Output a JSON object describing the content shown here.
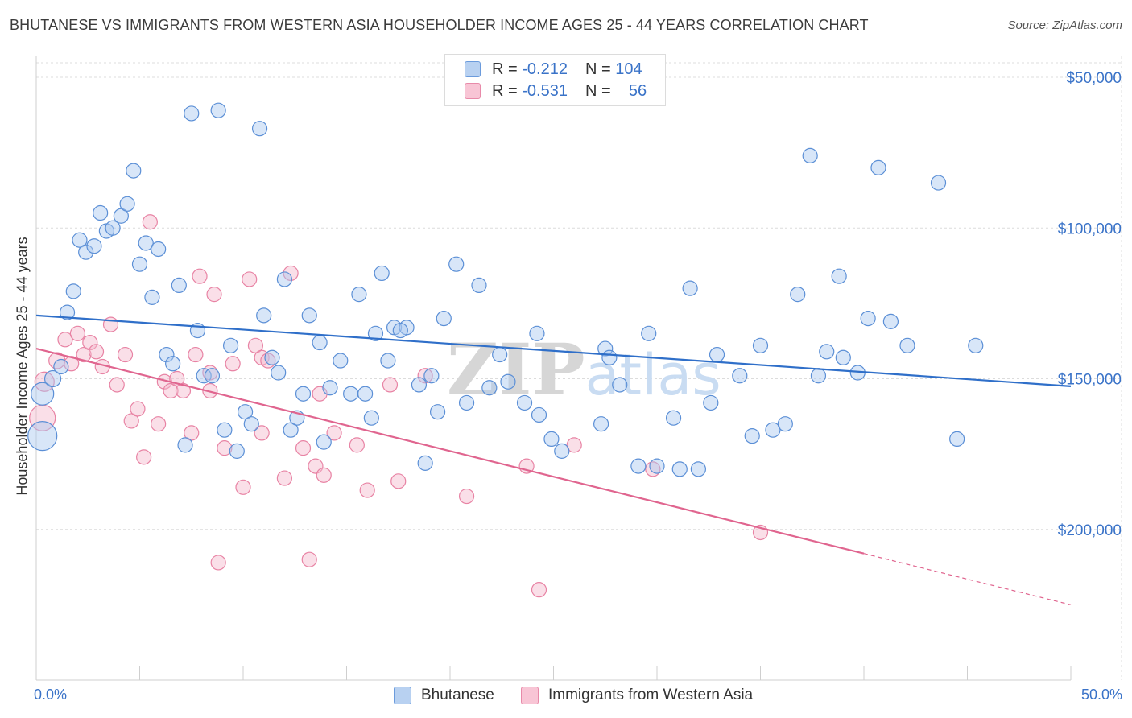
{
  "title": "BHUTANESE VS IMMIGRANTS FROM WESTERN ASIA HOUSEHOLDER INCOME AGES 25 - 44 YEARS CORRELATION CHART",
  "source": "Source: ZipAtlas.com",
  "watermark": "ZIPatlas",
  "legend": {
    "rows": [
      {
        "r_label": "R =",
        "r_value": "-0.212",
        "n_label": "N =",
        "n_value": "104"
      },
      {
        "r_label": "R =",
        "r_value": "-0.531",
        "n_label": "N =",
        "n_value": "56"
      }
    ]
  },
  "bottom_legend": [
    "Bhutanese",
    "Immigrants from Western Asia"
  ],
  "axis": {
    "ylabel": "Householder Income Ages 25 - 44 years",
    "x_min_label": "0.0%",
    "x_max_label": "50.0%",
    "y_ticks": [
      "$200,000",
      "$150,000",
      "$100,000",
      "$50,000"
    ]
  },
  "colors": {
    "blue_fill": "#a9c8ef",
    "blue_stroke": "#5b8fd6",
    "blue_line": "#2f6fc9",
    "pink_fill": "#f5b8cb",
    "pink_stroke": "#e883a4",
    "pink_line": "#e0658f",
    "tick_text": "#3a73c8"
  },
  "chart_data": {
    "type": "scatter",
    "xlim": [
      0,
      50
    ],
    "ylim": [
      0,
      210000
    ],
    "y_ticks": [
      50000,
      100000,
      150000,
      200000
    ],
    "grid": true,
    "series": [
      {
        "name": "Bhutanese",
        "trend": {
          "x0": 0,
          "y0": 121000,
          "x1": 50,
          "y1": 97500
        },
        "points": [
          [
            0.3,
            95000,
            14
          ],
          [
            0.3,
            81000,
            18
          ],
          [
            0.8,
            100000,
            10
          ],
          [
            1.2,
            104000,
            9
          ],
          [
            1.5,
            122000,
            9
          ],
          [
            1.8,
            129000,
            9
          ],
          [
            2.1,
            146000,
            9
          ],
          [
            2.4,
            142000,
            9
          ],
          [
            2.8,
            144000,
            9
          ],
          [
            3.1,
            155000,
            9
          ],
          [
            3.4,
            149000,
            9
          ],
          [
            3.7,
            150000,
            9
          ],
          [
            4.1,
            154000,
            9
          ],
          [
            4.4,
            158000,
            9
          ],
          [
            4.7,
            169000,
            9
          ],
          [
            5.0,
            138000,
            9
          ],
          [
            5.3,
            145000,
            9
          ],
          [
            5.6,
            127000,
            9
          ],
          [
            5.9,
            143000,
            9
          ],
          [
            6.3,
            108000,
            9
          ],
          [
            6.6,
            105000,
            9
          ],
          [
            6.9,
            131000,
            9
          ],
          [
            7.2,
            78000,
            9
          ],
          [
            7.5,
            188000,
            9
          ],
          [
            7.8,
            116000,
            9
          ],
          [
            8.1,
            101000,
            9
          ],
          [
            8.5,
            101000,
            9
          ],
          [
            8.8,
            189000,
            9
          ],
          [
            9.1,
            83000,
            9
          ],
          [
            9.4,
            111000,
            9
          ],
          [
            9.7,
            76000,
            9
          ],
          [
            10.1,
            89000,
            9
          ],
          [
            10.4,
            85000,
            9
          ],
          [
            10.8,
            183000,
            9
          ],
          [
            11.0,
            121000,
            9
          ],
          [
            11.4,
            107000,
            9
          ],
          [
            11.7,
            102000,
            9
          ],
          [
            12.0,
            133000,
            9
          ],
          [
            12.3,
            83000,
            9
          ],
          [
            12.6,
            87000,
            9
          ],
          [
            12.9,
            95000,
            9
          ],
          [
            13.2,
            121000,
            9
          ],
          [
            13.7,
            112000,
            9
          ],
          [
            13.9,
            79000,
            9
          ],
          [
            14.2,
            97000,
            9
          ],
          [
            14.7,
            106000,
            9
          ],
          [
            15.2,
            95000,
            9
          ],
          [
            15.6,
            128000,
            9
          ],
          [
            15.9,
            95000,
            9
          ],
          [
            16.2,
            87000,
            9
          ],
          [
            16.4,
            115000,
            9
          ],
          [
            16.7,
            135000,
            9
          ],
          [
            17.0,
            106000,
            9
          ],
          [
            17.3,
            117000,
            9
          ],
          [
            17.9,
            117000,
            9
          ],
          [
            17.6,
            116000,
            9
          ],
          [
            18.5,
            98000,
            9
          ],
          [
            18.8,
            72000,
            9
          ],
          [
            19.1,
            101000,
            9
          ],
          [
            19.4,
            89000,
            9
          ],
          [
            19.7,
            120000,
            9
          ],
          [
            20.3,
            138000,
            9
          ],
          [
            20.8,
            92000,
            9
          ],
          [
            21.4,
            131000,
            9
          ],
          [
            21.9,
            97000,
            9
          ],
          [
            22.4,
            108000,
            9
          ],
          [
            22.8,
            99000,
            9
          ],
          [
            23.6,
            92000,
            9
          ],
          [
            24.2,
            115000,
            9
          ],
          [
            24.3,
            88000,
            9
          ],
          [
            24.9,
            80000,
            9
          ],
          [
            25.4,
            76000,
            9
          ],
          [
            27.3,
            85000,
            9
          ],
          [
            27.5,
            110000,
            9
          ],
          [
            27.7,
            107000,
            9
          ],
          [
            28.2,
            98000,
            9
          ],
          [
            29.1,
            71000,
            9
          ],
          [
            29.6,
            115000,
            9
          ],
          [
            30.0,
            71000,
            9
          ],
          [
            30.8,
            87000,
            9
          ],
          [
            31.1,
            70000,
            9
          ],
          [
            31.6,
            130000,
            9
          ],
          [
            32.0,
            70000,
            9
          ],
          [
            32.6,
            92000,
            9
          ],
          [
            32.9,
            108000,
            9
          ],
          [
            34.0,
            101000,
            9
          ],
          [
            34.6,
            81000,
            9
          ],
          [
            35.0,
            111000,
            9
          ],
          [
            35.6,
            83000,
            9
          ],
          [
            36.2,
            85000,
            9
          ],
          [
            36.8,
            128000,
            9
          ],
          [
            37.4,
            174000,
            9
          ],
          [
            37.8,
            101000,
            9
          ],
          [
            38.2,
            109000,
            9
          ],
          [
            38.8,
            134000,
            9
          ],
          [
            39.0,
            107000,
            9
          ],
          [
            39.7,
            102000,
            9
          ],
          [
            40.2,
            120000,
            9
          ],
          [
            40.7,
            170000,
            9
          ],
          [
            41.3,
            119000,
            9
          ],
          [
            42.1,
            111000,
            9
          ],
          [
            43.6,
            165000,
            9
          ],
          [
            44.5,
            80000,
            9
          ],
          [
            45.4,
            111000,
            9
          ]
        ]
      },
      {
        "name": "Immigrants from Western Asia",
        "trend": {
          "x0": 0,
          "y0": 110000,
          "x1": 40,
          "y1": 42000,
          "dash_to_x": 50,
          "dash_to_y": 25000
        },
        "points": [
          [
            0.3,
            87000,
            16
          ],
          [
            0.4,
            99000,
            12
          ],
          [
            1.0,
            106000,
            10
          ],
          [
            1.4,
            113000,
            9
          ],
          [
            1.7,
            105000,
            9
          ],
          [
            2.0,
            115000,
            9
          ],
          [
            2.3,
            108000,
            9
          ],
          [
            2.6,
            112000,
            9
          ],
          [
            2.9,
            109000,
            9
          ],
          [
            3.2,
            104000,
            9
          ],
          [
            3.6,
            118000,
            9
          ],
          [
            3.9,
            98000,
            9
          ],
          [
            4.3,
            108000,
            9
          ],
          [
            4.6,
            86000,
            9
          ],
          [
            4.9,
            90000,
            9
          ],
          [
            5.2,
            74000,
            9
          ],
          [
            5.5,
            152000,
            9
          ],
          [
            5.9,
            85000,
            9
          ],
          [
            6.2,
            99000,
            9
          ],
          [
            6.5,
            96000,
            9
          ],
          [
            6.8,
            100000,
            9
          ],
          [
            7.1,
            96000,
            9
          ],
          [
            7.5,
            82000,
            9
          ],
          [
            7.7,
            108000,
            9
          ],
          [
            7.9,
            134000,
            9
          ],
          [
            8.4,
            102000,
            9
          ],
          [
            8.6,
            128000,
            9
          ],
          [
            8.8,
            39000,
            9
          ],
          [
            9.1,
            77000,
            9
          ],
          [
            9.5,
            105000,
            9
          ],
          [
            10.0,
            64000,
            9
          ],
          [
            10.3,
            133000,
            9
          ],
          [
            10.6,
            111000,
            9
          ],
          [
            10.9,
            107000,
            9
          ],
          [
            11.2,
            106000,
            9
          ],
          [
            12.0,
            67000,
            9
          ],
          [
            12.3,
            135000,
            9
          ],
          [
            12.9,
            77000,
            9
          ],
          [
            13.2,
            40000,
            9
          ],
          [
            13.5,
            71000,
            9
          ],
          [
            13.9,
            68000,
            9
          ],
          [
            14.4,
            82000,
            9
          ],
          [
            15.5,
            78000,
            9
          ],
          [
            16.0,
            63000,
            9
          ],
          [
            17.1,
            98000,
            9
          ],
          [
            17.5,
            66000,
            9
          ],
          [
            18.8,
            101000,
            9
          ],
          [
            20.8,
            61000,
            9
          ],
          [
            23.7,
            71000,
            9
          ],
          [
            24.3,
            30000,
            9
          ],
          [
            26.0,
            78000,
            9
          ],
          [
            29.8,
            70000,
            9
          ],
          [
            35.0,
            49000,
            9
          ],
          [
            13.7,
            95000,
            9
          ],
          [
            8.4,
            96000,
            9
          ],
          [
            10.9,
            82000,
            9
          ]
        ]
      }
    ]
  }
}
